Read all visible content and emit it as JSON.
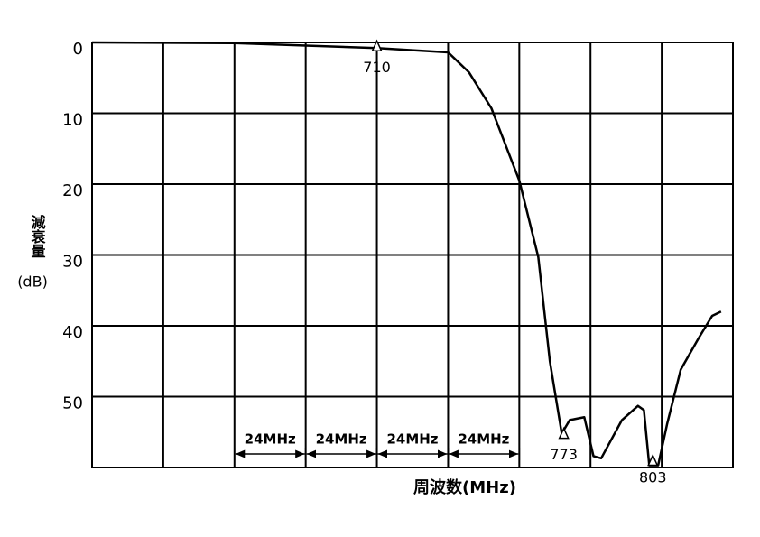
{
  "chart_data": {
    "type": "line",
    "ylabel": "減衰量",
    "ylabel_unit": "(dB)",
    "xlabel": "周波数(MHz)",
    "x": [
      614,
      662,
      710,
      734,
      741,
      748.6,
      758,
      764.4,
      768.3,
      772.3,
      775,
      779.9,
      783,
      785.6,
      792.6,
      798,
      800,
      801.8,
      804.8,
      807.8,
      812.4,
      818.5,
      823,
      826
    ],
    "series": [
      {
        "color": "#000000",
        "values": [
          0,
          0.1,
          0.8,
          1.4,
          4.2,
          9.3,
          19.5,
          30.3,
          45,
          55.2,
          53.3,
          52.9,
          58.4,
          58.7,
          53.3,
          51.3,
          51.9,
          59.7,
          59.7,
          53.9,
          46.2,
          41.7,
          38.6,
          38
        ]
      }
    ],
    "xlim": [
      614,
      830
    ],
    "xticks": [
      614,
      638,
      662,
      686,
      710,
      734,
      758,
      782,
      806,
      830
    ],
    "ylim": [
      60,
      0
    ],
    "yticks": [
      0,
      10,
      20,
      30,
      40,
      50
    ],
    "grid": true,
    "markers": [
      {
        "x": 710,
        "y": 0.8
      },
      {
        "x": 773,
        "y": 55.5
      },
      {
        "x": 803,
        "y": 59.3
      }
    ],
    "spans": [
      {
        "label": "24MHz",
        "x0": 662,
        "x1": 686
      },
      {
        "label": "24MHz",
        "x0": 686,
        "x1": 710
      },
      {
        "label": "24MHz",
        "x0": 710,
        "x1": 734
      },
      {
        "label": "24MHz",
        "x0": 734,
        "x1": 758
      }
    ]
  }
}
